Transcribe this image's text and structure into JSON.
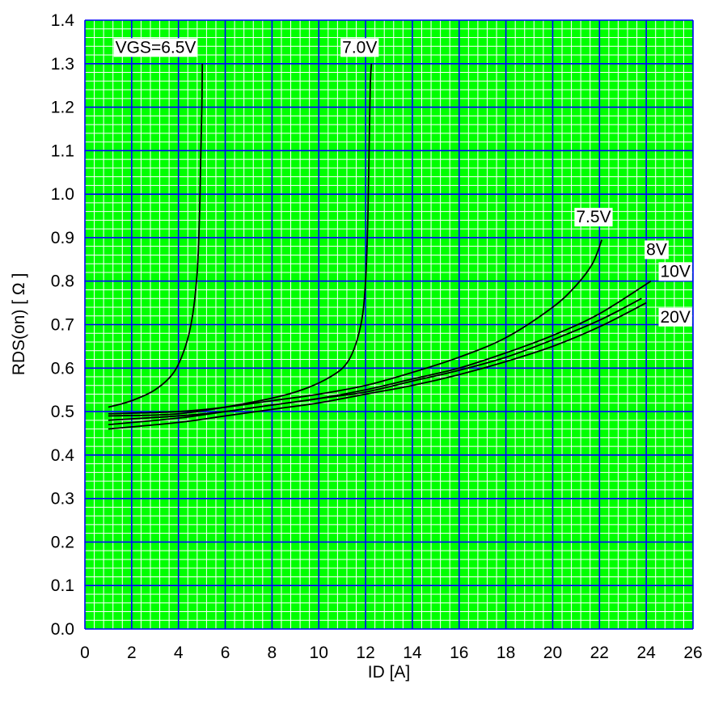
{
  "chart_data": {
    "type": "line",
    "xlabel": "ID [A]",
    "ylabel": "RDS(on) [ Ω ]",
    "xlim": [
      0,
      26
    ],
    "ylim": [
      0.0,
      1.4
    ],
    "x_ticks": [
      "0",
      "2",
      "4",
      "6",
      "8",
      "10",
      "12",
      "14",
      "16",
      "18",
      "20",
      "22",
      "24",
      "26"
    ],
    "y_ticks": [
      "0.0",
      "0.1",
      "0.2",
      "0.3",
      "0.4",
      "0.5",
      "0.6",
      "0.7",
      "0.8",
      "0.9",
      "1.0",
      "1.1",
      "1.2",
      "1.3",
      "1.4"
    ],
    "grid": true,
    "colors": {
      "background": "#00ff00",
      "minor_grid": "#ffffff",
      "major_grid": "#0000ff",
      "line": "#000000"
    },
    "series": [
      {
        "name": "VGS=6.5V",
        "x": [
          1.0,
          2.0,
          3.0,
          3.8,
          4.3,
          4.6,
          4.8,
          4.9,
          4.95,
          5.0,
          5.02
        ],
        "y": [
          0.51,
          0.525,
          0.55,
          0.59,
          0.65,
          0.72,
          0.82,
          0.95,
          1.08,
          1.2,
          1.3
        ]
      },
      {
        "name": "7.0V",
        "x": [
          1.0,
          4.0,
          7.0,
          9.0,
          10.5,
          11.3,
          11.8,
          12.0,
          12.1,
          12.15,
          12.2,
          12.25
        ],
        "y": [
          0.49,
          0.495,
          0.52,
          0.545,
          0.58,
          0.62,
          0.7,
          0.8,
          0.95,
          1.1,
          1.25,
          1.3
        ]
      },
      {
        "name": "7.5V",
        "x": [
          1.0,
          4.0,
          6.0,
          8.0,
          10.0,
          12.0,
          14.0,
          16.0,
          18.0,
          20.0,
          21.0,
          21.7,
          22.1
        ],
        "y": [
          0.495,
          0.5,
          0.51,
          0.525,
          0.54,
          0.56,
          0.59,
          0.625,
          0.67,
          0.74,
          0.79,
          0.84,
          0.895
        ]
      },
      {
        "name": "8V",
        "x": [
          1.0,
          4.0,
          6.0,
          8.0,
          10.0,
          12.0,
          14.0,
          16.0,
          18.0,
          20.0,
          22.0,
          24.2
        ],
        "y": [
          0.48,
          0.49,
          0.5,
          0.515,
          0.53,
          0.55,
          0.575,
          0.6,
          0.635,
          0.675,
          0.725,
          0.8
        ]
      },
      {
        "name": "10V",
        "x": [
          1.0,
          4.0,
          6.0,
          8.0,
          10.0,
          12.0,
          14.0,
          16.0,
          18.0,
          20.0,
          22.0,
          23.8
        ],
        "y": [
          0.47,
          0.485,
          0.5,
          0.515,
          0.53,
          0.545,
          0.57,
          0.595,
          0.625,
          0.665,
          0.71,
          0.76
        ]
      },
      {
        "name": "20V",
        "x": [
          1.0,
          4.0,
          6.0,
          8.0,
          10.0,
          12.0,
          14.0,
          16.0,
          18.0,
          20.0,
          22.0,
          24.0
        ],
        "y": [
          0.46,
          0.475,
          0.49,
          0.505,
          0.52,
          0.54,
          0.56,
          0.585,
          0.615,
          0.65,
          0.695,
          0.75
        ]
      }
    ]
  }
}
